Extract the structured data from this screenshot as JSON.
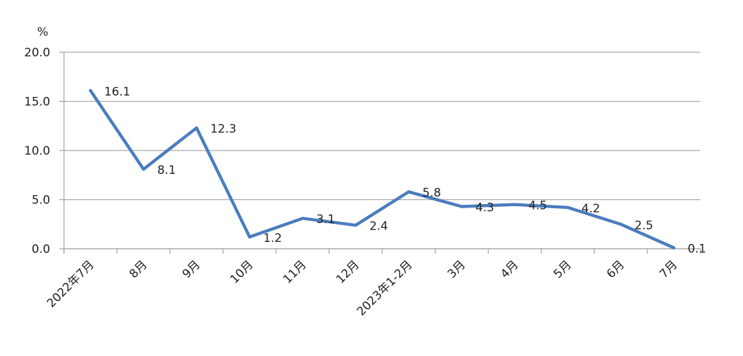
{
  "chart_data": {
    "type": "line",
    "title": "",
    "xlabel": "",
    "ylabel": "%",
    "ylim": [
      0,
      20
    ],
    "yticks": [
      "0.0",
      "5.0",
      "10.0",
      "15.0",
      "20.0"
    ],
    "grid": true,
    "categories": [
      "2022年7月",
      "8月",
      "9月",
      "10月",
      "11月",
      "12月",
      "2023年1-2月",
      "3月",
      "4月",
      "5月",
      "6月",
      "7月"
    ],
    "series": [
      {
        "values": [
          16.1,
          8.1,
          12.3,
          1.2,
          3.1,
          2.4,
          5.8,
          4.3,
          4.5,
          4.2,
          2.5,
          0.1
        ],
        "labels": [
          "16.1",
          "8.1",
          "12.3",
          "1.2",
          "3.1",
          "2.4",
          "5.8",
          "4.3",
          "4.5",
          "4.2",
          "2.5",
          "0.1"
        ],
        "color": "#4a7dbf"
      }
    ]
  }
}
